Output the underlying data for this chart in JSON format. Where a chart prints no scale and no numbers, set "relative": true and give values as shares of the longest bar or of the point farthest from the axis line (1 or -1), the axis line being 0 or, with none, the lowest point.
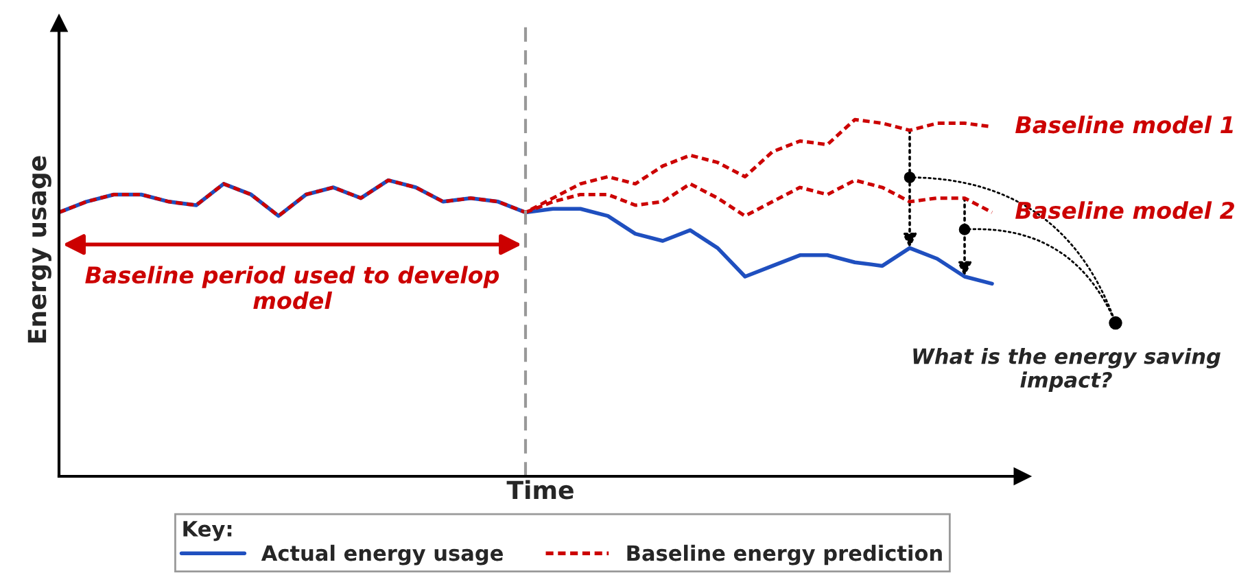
{
  "chart_data": {
    "type": "line",
    "relative": true,
    "xlabel": "Time",
    "ylabel": "Energy usage",
    "legend_title": "Key:",
    "legend": "bottom",
    "marker": "none",
    "categories": [
      null,
      null,
      null,
      null,
      null,
      null,
      null,
      null,
      null,
      null,
      null,
      null,
      null,
      null,
      null,
      null,
      null,
      null,
      null,
      null,
      null,
      null,
      null,
      null,
      null,
      null,
      null,
      null,
      null,
      null,
      null,
      null,
      null,
      null,
      null
    ],
    "series": [
      {
        "name": "Actual energy usage",
        "color": "#1f4fbf",
        "line_style": "solid",
        "values": [
          0.74,
          0.77,
          0.79,
          0.79,
          0.77,
          0.76,
          0.82,
          0.79,
          0.73,
          0.79,
          0.81,
          0.78,
          0.83,
          0.81,
          0.77,
          0.78,
          0.77,
          0.74,
          0.75,
          0.75,
          0.73,
          0.68,
          0.66,
          0.69,
          0.64,
          0.56,
          0.59,
          0.62,
          0.62,
          0.6,
          0.59,
          0.64,
          0.61,
          0.56,
          0.54
        ]
      },
      {
        "name": "Baseline energy prediction",
        "color": "#cc0000",
        "line_style": "dotted",
        "values": [
          0.74,
          0.77,
          0.79,
          0.79,
          0.77,
          0.76,
          0.82,
          0.79,
          0.73,
          0.79,
          0.81,
          0.78,
          0.83,
          0.81,
          0.77,
          0.78,
          0.77,
          0.74,
          0.78,
          0.82,
          0.84,
          0.82,
          0.87,
          0.9,
          0.88,
          0.84,
          0.91,
          0.94,
          0.93,
          1.0,
          0.99,
          0.97,
          0.99,
          0.99,
          0.98
        ]
      },
      {
        "color": "#cc0000",
        "line_style": "dotted",
        "values": [
          null,
          null,
          null,
          null,
          null,
          null,
          null,
          null,
          null,
          null,
          null,
          null,
          null,
          null,
          null,
          null,
          null,
          0.74,
          0.77,
          0.79,
          0.79,
          0.76,
          0.77,
          0.82,
          0.78,
          0.73,
          0.77,
          0.81,
          0.79,
          0.83,
          0.81,
          0.77,
          0.78,
          0.78,
          0.74
        ]
      }
    ],
    "annotations": [
      "Baseline model 1",
      "Baseline model 2",
      "Baseline period used to develop model",
      "What is the energy saving impact?"
    ]
  }
}
